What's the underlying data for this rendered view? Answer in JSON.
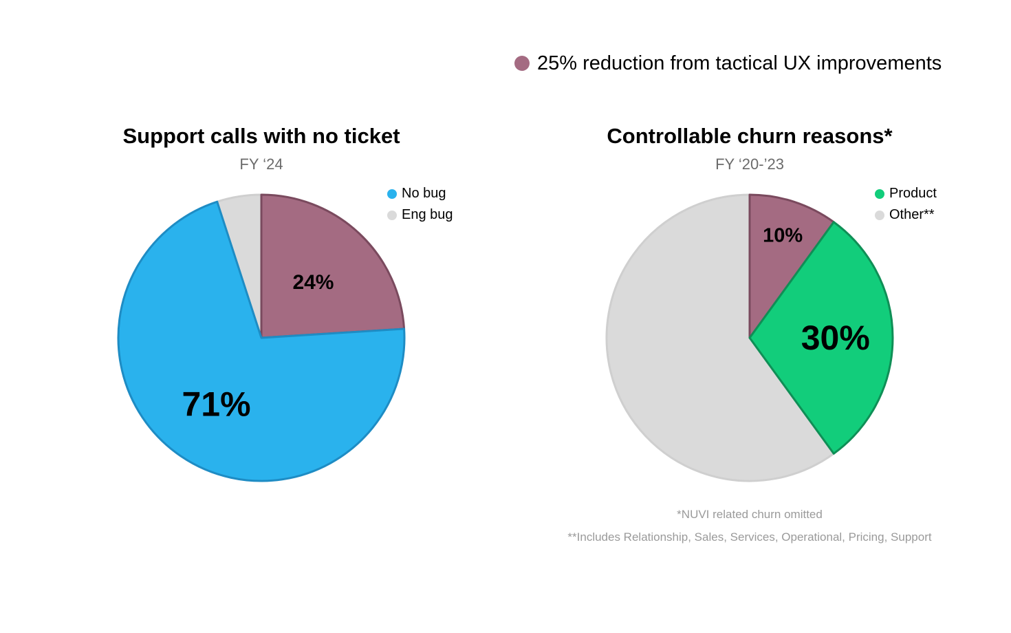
{
  "top_legend": {
    "text": "25% reduction from tactical UX improvements",
    "color": "#a46b82"
  },
  "footnotes": [
    "*NUVI related churn omitted",
    "**Includes Relationship, Sales, Services, Operational, Pricing, Support"
  ],
  "chart_data": [
    {
      "type": "pie",
      "title": "Support calls with no ticket",
      "subtitle": "FY ‘24",
      "legend": [
        {
          "label": "No bug",
          "color": "#2ab2ed"
        },
        {
          "label": "Eng bug",
          "color": "#dadada"
        }
      ],
      "slices": [
        {
          "value": 24,
          "label": "24%",
          "color": "#a46b82",
          "stroke": "#7a4a5e"
        },
        {
          "value": 71,
          "label": "71%",
          "color": "#2ab2ed",
          "stroke": "#1e8cc4"
        },
        {
          "value": 5,
          "label": "",
          "color": "#dadada",
          "stroke": "#cfcfcf"
        }
      ]
    },
    {
      "type": "pie",
      "title": "Controllable churn reasons*",
      "subtitle": "FY ‘20-’23",
      "legend": [
        {
          "label": "Product",
          "color": "#12cd7b"
        },
        {
          "label": "Other**",
          "color": "#dadada"
        }
      ],
      "slices": [
        {
          "value": 10,
          "label": "10%",
          "color": "#a46b82",
          "stroke": "#7a4a5e"
        },
        {
          "value": 30,
          "label": "30%",
          "color": "#12cd7b",
          "stroke": "#0f8f56"
        },
        {
          "value": 60,
          "label": "",
          "color": "#dadada",
          "stroke": "#cfcfcf"
        }
      ]
    }
  ]
}
